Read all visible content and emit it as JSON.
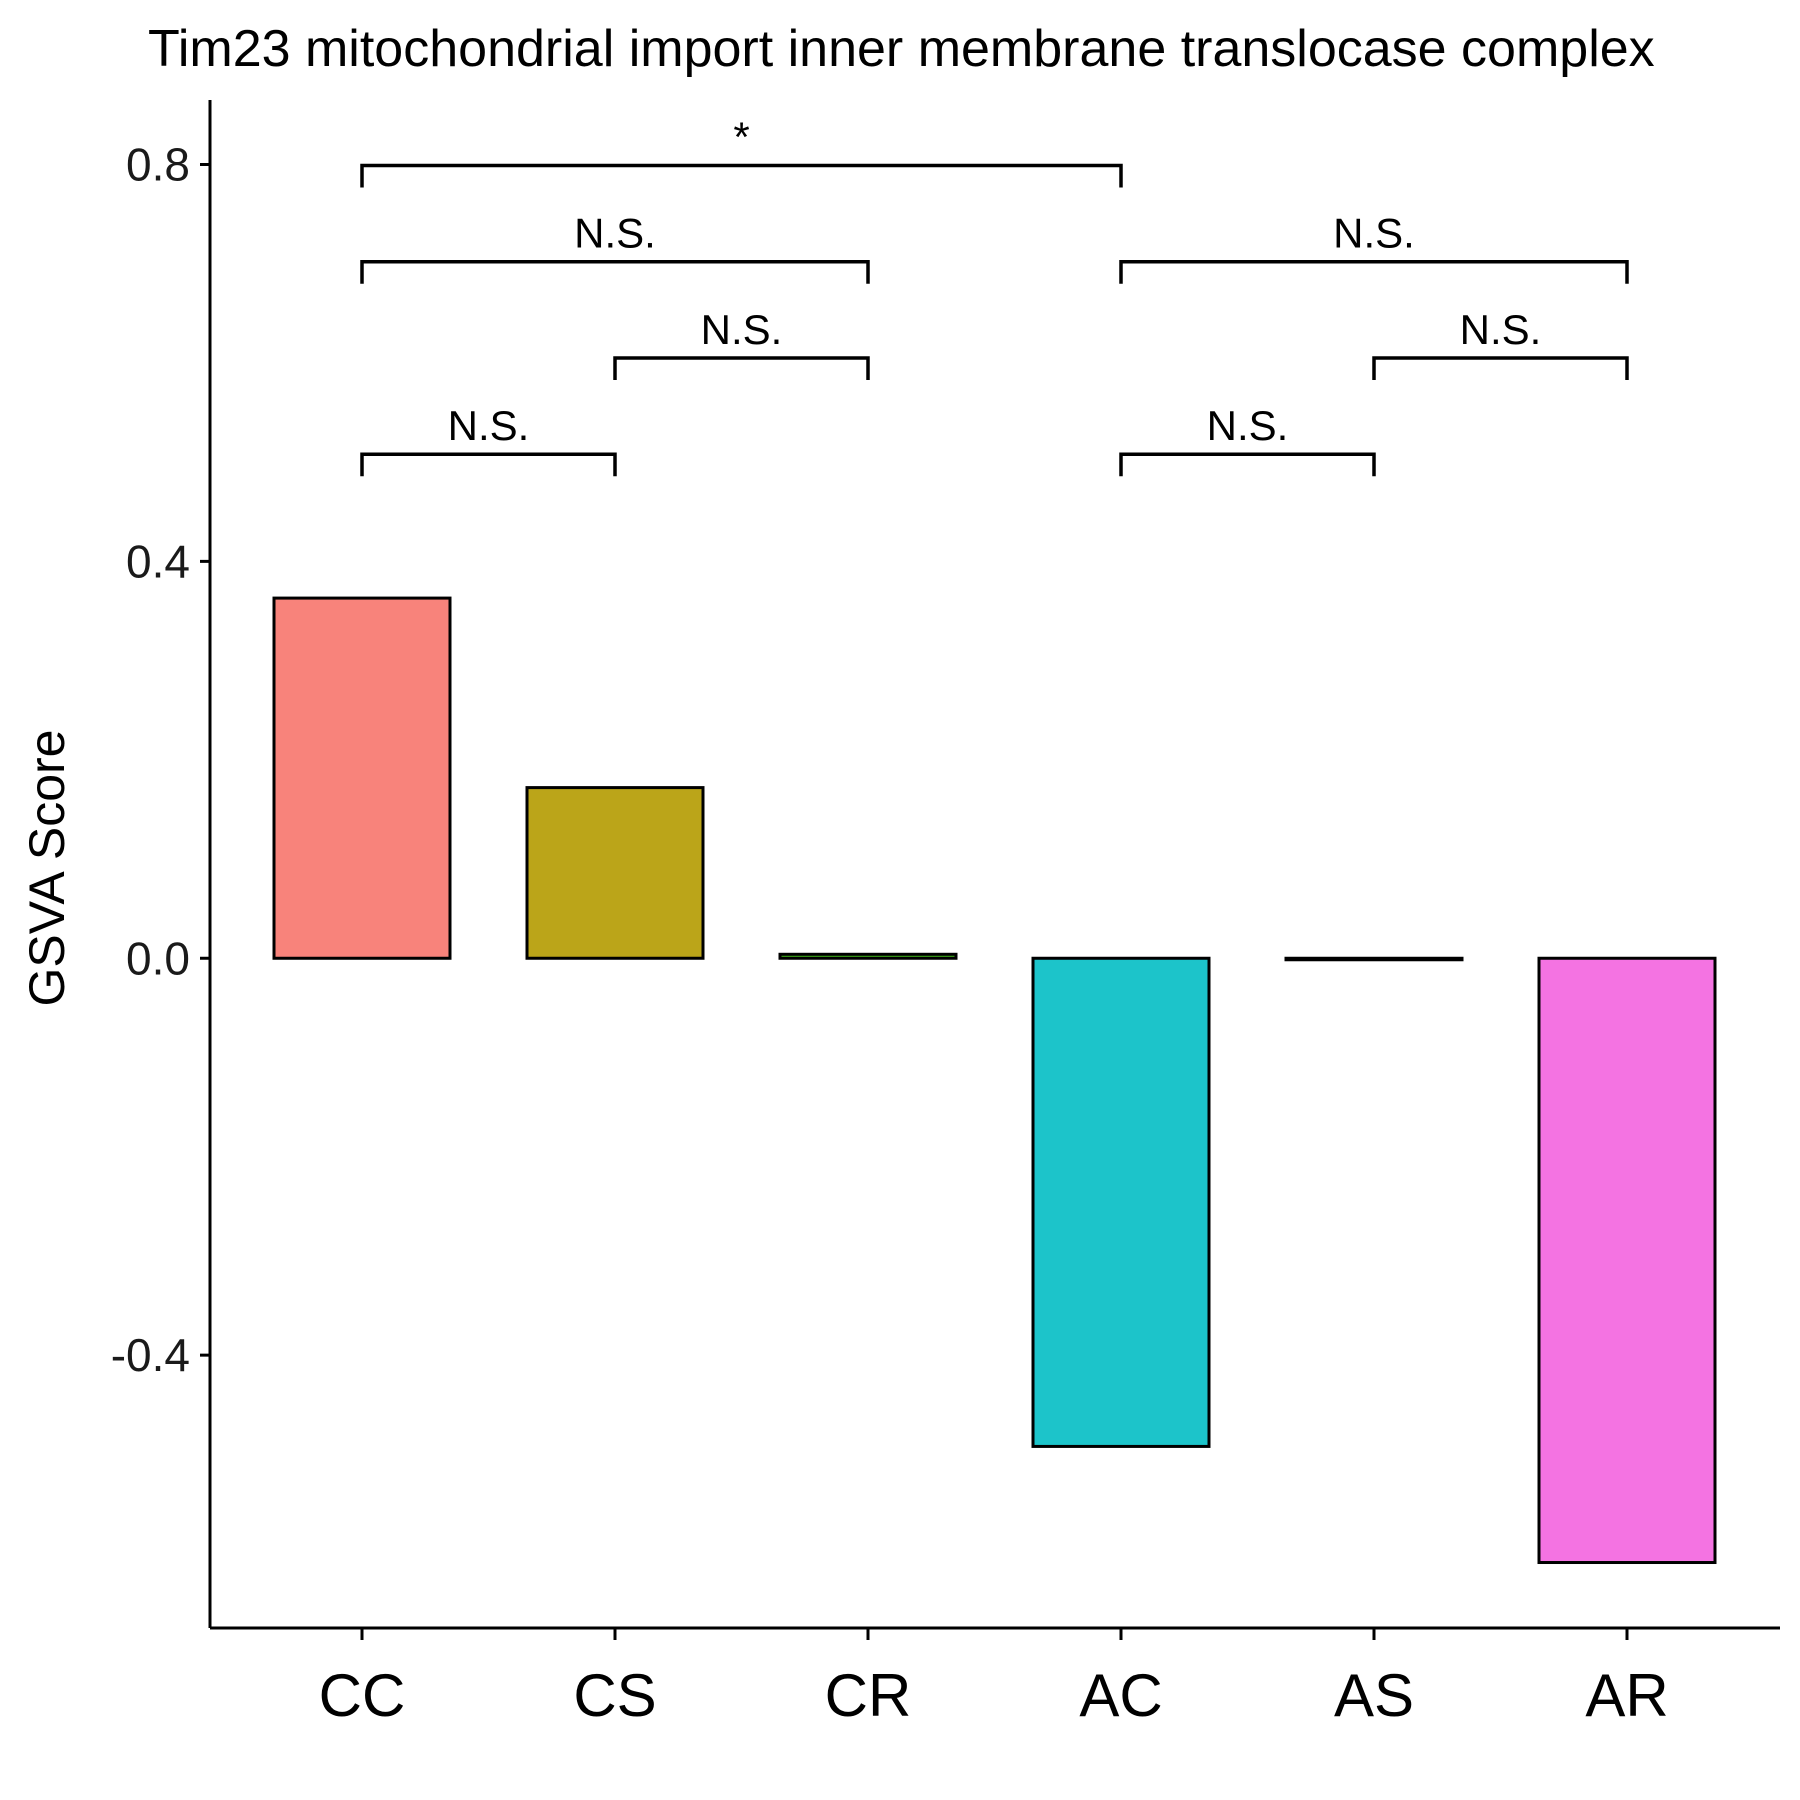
{
  "chart_data": {
    "type": "bar",
    "title": "Tim23 mitochondrial import inner membrane translocase complex",
    "xlabel": "",
    "ylabel": "GSVA Score",
    "categories": [
      "CC",
      "CS",
      "CR",
      "AC",
      "AS",
      "AR"
    ],
    "values": [
      0.363,
      0.172,
      0.004,
      -0.492,
      -0.001,
      -0.609
    ],
    "colors": [
      "#F8837B",
      "#BBA519",
      "#44BD1B",
      "#1CC4CA",
      "#629BFE",
      "#F473E2"
    ],
    "ylim": [
      -0.675,
      0.865
    ],
    "yticks": [
      {
        "value": 0.8,
        "label": "0.8"
      },
      {
        "value": 0.4,
        "label": "0.4"
      },
      {
        "value": 0.0,
        "label": "0.0"
      },
      {
        "value": -0.4,
        "label": "-0.4"
      }
    ],
    "comparisons": [
      {
        "from": "CC",
        "to": "CS",
        "y": 0.508,
        "label": "N.S."
      },
      {
        "from": "CS",
        "to": "CR",
        "y": 0.605,
        "label": "N.S."
      },
      {
        "from": "CC",
        "to": "CR",
        "y": 0.702,
        "label": "N.S."
      },
      {
        "from": "CC",
        "to": "AC",
        "y": 0.799,
        "label": "*"
      },
      {
        "from": "AC",
        "to": "AS",
        "y": 0.508,
        "label": "N.S."
      },
      {
        "from": "AS",
        "to": "AR",
        "y": 0.605,
        "label": "N.S."
      },
      {
        "from": "AC",
        "to": "AR",
        "y": 0.702,
        "label": "N.S."
      }
    ],
    "grid": false,
    "legend": "none"
  }
}
